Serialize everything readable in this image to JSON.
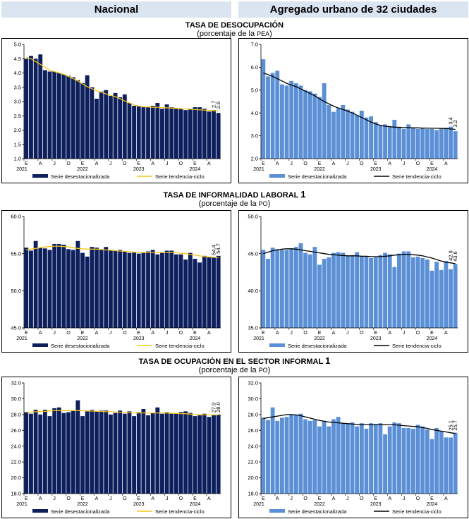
{
  "headers": {
    "left": "Nacional",
    "right": "Agregado urbano de 32 ciudades"
  },
  "sections": [
    {
      "title": "TASA DE DESOCUPACIÓN",
      "subtitle_prefix": "(porcentaje de la ",
      "subtitle_unit": "PEA",
      "subtitle_suffix": ")",
      "footnote": ""
    },
    {
      "title": "TASA DE INFORMALIDAD LABORAL ",
      "subtitle_prefix": "(porcentaje de la ",
      "subtitle_unit": "PO",
      "subtitle_suffix": ")",
      "footnote": "1"
    },
    {
      "title": "TASA DE OCUPACIÓN EN EL SECTOR INFORMAL ",
      "subtitle_prefix": "(porcentaje de la ",
      "subtitle_unit": "PO",
      "subtitle_suffix": ")",
      "footnote": "1"
    }
  ],
  "x_axis": {
    "month_labels": [
      "E",
      "A",
      "J",
      "O",
      "E",
      "A",
      "J",
      "O",
      "E",
      "A",
      "J",
      "O",
      "E",
      "A"
    ],
    "year_labels": [
      "2021",
      "2022",
      "2023",
      "2024"
    ]
  },
  "legend": {
    "bars": "Serie desestacionalizada",
    "trend": "Serie tendencia-ciclo"
  },
  "colors": {
    "nacional_bar": "#0d1f5c",
    "urbano_bar": "#5b8fd6",
    "nacional_trend": "#f5c518",
    "urbano_trend": "#000000",
    "header_bg": "#dbe5f1"
  },
  "chart_data": [
    {
      "id": "desocupacion-nacional",
      "type": "bar",
      "ylim": [
        1.0,
        5.0
      ],
      "yticks": [
        "1.0",
        "1.5",
        "2.0",
        "2.5",
        "3.0",
        "3.5",
        "4.0",
        "4.5",
        "5.0"
      ],
      "values": [
        4.5,
        4.6,
        4.5,
        4.65,
        4.1,
        4.05,
        4.05,
        4.0,
        3.95,
        3.9,
        3.85,
        3.75,
        3.65,
        3.92,
        3.5,
        3.1,
        3.35,
        3.4,
        3.2,
        3.3,
        3.15,
        3.25,
        2.95,
        2.85,
        2.85,
        2.8,
        2.8,
        2.85,
        2.95,
        2.75,
        2.9,
        2.8,
        2.75,
        2.75,
        2.7,
        2.75,
        2.8,
        2.8,
        2.75,
        2.65,
        2.7,
        2.6
      ],
      "trend": [
        4.55,
        4.5,
        4.4,
        4.3,
        4.2,
        4.1,
        4.05,
        4.0,
        3.95,
        3.88,
        3.8,
        3.72,
        3.62,
        3.52,
        3.45,
        3.38,
        3.32,
        3.27,
        3.22,
        3.17,
        3.1,
        3.02,
        2.95,
        2.88,
        2.84,
        2.82,
        2.81,
        2.8,
        2.8,
        2.79,
        2.78,
        2.77,
        2.76,
        2.75,
        2.74,
        2.73,
        2.72,
        2.71,
        2.7,
        2.69,
        2.68,
        2.67
      ],
      "end_labels": [
        "2.7",
        "2.6"
      ]
    },
    {
      "id": "desocupacion-urbano",
      "type": "bar",
      "ylim": [
        2.0,
        7.0
      ],
      "yticks": [
        "2.0",
        "3.0",
        "4.0",
        "5.0",
        "6.0",
        "7.0"
      ],
      "values": [
        6.35,
        5.6,
        5.75,
        5.85,
        5.25,
        5.2,
        5.4,
        5.3,
        5.2,
        5.0,
        4.95,
        4.85,
        4.7,
        5.3,
        4.35,
        4.05,
        4.2,
        4.35,
        4.15,
        4.05,
        3.9,
        4.1,
        3.8,
        3.85,
        3.6,
        3.45,
        3.5,
        3.4,
        3.7,
        3.4,
        3.3,
        3.5,
        3.35,
        3.3,
        3.35,
        3.3,
        3.3,
        3.25,
        3.3,
        3.35,
        3.4,
        3.2
      ],
      "trend": [
        5.75,
        5.68,
        5.6,
        5.5,
        5.4,
        5.3,
        5.22,
        5.15,
        5.05,
        4.95,
        4.85,
        4.75,
        4.62,
        4.5,
        4.4,
        4.3,
        4.22,
        4.15,
        4.08,
        4.0,
        3.9,
        3.8,
        3.7,
        3.6,
        3.52,
        3.46,
        3.42,
        3.4,
        3.38,
        3.37,
        3.36,
        3.36,
        3.35,
        3.35,
        3.34,
        3.34,
        3.33,
        3.33,
        3.32,
        3.32,
        3.3,
        3.28
      ],
      "end_labels": [
        "3.4",
        "3.2"
      ]
    },
    {
      "id": "informalidad-nacional",
      "type": "bar",
      "ylim": [
        45.0,
        60.0
      ],
      "yticks": [
        "45.0",
        "50.0",
        "55.0",
        "60.0"
      ],
      "values": [
        55.8,
        55.4,
        56.7,
        55.8,
        55.7,
        55.5,
        56.3,
        56.3,
        56.2,
        55.6,
        55.5,
        56.7,
        55.1,
        54.6,
        55.9,
        55.8,
        55.6,
        55.9,
        55.5,
        55.4,
        55.5,
        55.3,
        55.1,
        55.2,
        55.0,
        55.1,
        55.3,
        55.5,
        54.9,
        55.1,
        55.4,
        55.4,
        54.9,
        54.9,
        54.2,
        55.1,
        54.3,
        53.8,
        54.7,
        54.5,
        54.5,
        54.7
      ],
      "trend": [
        55.5,
        55.6,
        55.7,
        55.8,
        55.9,
        55.95,
        56.0,
        56.0,
        55.95,
        55.9,
        55.8,
        55.7,
        55.65,
        55.6,
        55.6,
        55.6,
        55.55,
        55.5,
        55.45,
        55.4,
        55.35,
        55.3,
        55.25,
        55.2,
        55.15,
        55.15,
        55.15,
        55.15,
        55.15,
        55.15,
        55.15,
        55.15,
        55.1,
        55.05,
        55.0,
        54.9,
        54.8,
        54.7,
        54.6,
        54.55,
        54.5,
        54.45
      ],
      "end_labels": [
        "54.4",
        "54.7"
      ]
    },
    {
      "id": "informalidad-urbano",
      "type": "bar",
      "ylim": [
        35.0,
        50.0
      ],
      "yticks": [
        "35.0",
        "40.0",
        "45.0",
        "50.0"
      ],
      "values": [
        45.5,
        44.3,
        45.8,
        45.6,
        45.5,
        45.5,
        45.7,
        45.9,
        46.4,
        45.1,
        44.9,
        45.9,
        43.5,
        44.3,
        44.5,
        45.1,
        45.2,
        45.1,
        44.7,
        44.8,
        45.2,
        44.7,
        44.6,
        44.4,
        44.5,
        44.8,
        45.1,
        44.9,
        43.2,
        45.0,
        45.3,
        45.3,
        44.5,
        44.6,
        44.4,
        44.2,
        42.7,
        43.9,
        42.8,
        44.0,
        42.9,
        43.6
      ],
      "trend": [
        45.0,
        45.2,
        45.4,
        45.5,
        45.6,
        45.65,
        45.65,
        45.6,
        45.5,
        45.4,
        45.3,
        45.2,
        45.1,
        45.0,
        44.9,
        44.85,
        44.8,
        44.75,
        44.7,
        44.7,
        44.7,
        44.65,
        44.65,
        44.6,
        44.6,
        44.6,
        44.65,
        44.7,
        44.8,
        44.85,
        44.9,
        44.9,
        44.85,
        44.8,
        44.7,
        44.55,
        44.4,
        44.2,
        44.0,
        43.85,
        43.75,
        43.65
      ],
      "end_labels": [
        "42.9",
        "43.6"
      ]
    },
    {
      "id": "sector-informal-nacional",
      "type": "bar",
      "ylim": [
        18.0,
        32.0
      ],
      "yticks": [
        "18.0",
        "20.0",
        "22.0",
        "24.0",
        "26.0",
        "28.0",
        "30.0",
        "32.0"
      ],
      "values": [
        28.3,
        28.1,
        28.6,
        28.0,
        28.6,
        27.8,
        28.8,
        28.9,
        28.2,
        28.3,
        28.5,
        29.8,
        27.8,
        28.4,
        28.6,
        28.4,
        28.5,
        28.5,
        28.0,
        28.2,
        28.5,
        28.1,
        28.4,
        27.8,
        28.3,
        28.7,
        27.9,
        28.2,
        28.9,
        28.1,
        28.3,
        28.2,
        28.1,
        28.3,
        28.4,
        28.2,
        27.8,
        27.9,
        28.1,
        27.7,
        27.9,
        28.0
      ],
      "trend": [
        28.3,
        28.3,
        28.35,
        28.4,
        28.4,
        28.45,
        28.5,
        28.5,
        28.5,
        28.5,
        28.5,
        28.5,
        28.5,
        28.45,
        28.45,
        28.4,
        28.4,
        28.35,
        28.35,
        28.3,
        28.3,
        28.25,
        28.25,
        28.2,
        28.2,
        28.2,
        28.2,
        28.2,
        28.2,
        28.2,
        28.2,
        28.15,
        28.15,
        28.1,
        28.1,
        28.05,
        28.0,
        28.0,
        27.95,
        27.95,
        27.95,
        27.95
      ],
      "end_labels": [
        "27.9",
        "28.0"
      ]
    },
    {
      "id": "sector-informal-urbano",
      "type": "bar",
      "ylim": [
        18.0,
        32.0
      ],
      "yticks": [
        "18.0",
        "20.0",
        "22.0",
        "24.0",
        "26.0",
        "28.0",
        "30.0",
        "32.0"
      ],
      "values": [
        27.6,
        27.3,
        28.9,
        27.2,
        27.6,
        27.7,
        28.0,
        28.0,
        28.1,
        27.4,
        27.2,
        27.3,
        26.5,
        27.2,
        26.5,
        27.4,
        27.7,
        26.9,
        26.9,
        27.0,
        26.5,
        26.9,
        26.2,
        26.9,
        26.8,
        26.9,
        25.5,
        26.5,
        27.0,
        26.9,
        26.3,
        26.3,
        26.2,
        26.7,
        26.5,
        26.1,
        24.9,
        26.3,
        25.9,
        25.1,
        25.1,
        25.7
      ],
      "trend": [
        27.5,
        27.6,
        27.7,
        27.8,
        27.9,
        28.0,
        28.0,
        27.95,
        27.85,
        27.7,
        27.55,
        27.4,
        27.25,
        27.15,
        27.05,
        27.0,
        26.95,
        26.9,
        26.85,
        26.8,
        26.75,
        26.7,
        26.7,
        26.7,
        26.7,
        26.7,
        26.7,
        26.7,
        26.7,
        26.65,
        26.6,
        26.55,
        26.5,
        26.45,
        26.35,
        26.25,
        26.1,
        26.0,
        25.9,
        25.8,
        25.7,
        25.6
      ],
      "end_labels": [
        "25.1",
        "25.7"
      ]
    }
  ]
}
